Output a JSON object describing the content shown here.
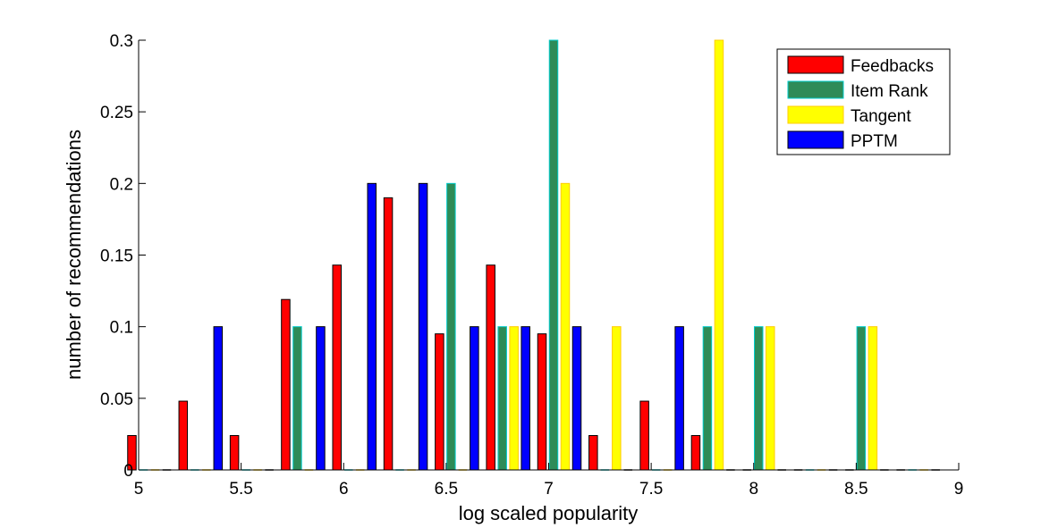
{
  "chart_data": {
    "type": "bar",
    "title": "",
    "xlabel": "log scaled popularity",
    "ylabel": "number of recommendations",
    "xlim": [
      5,
      9
    ],
    "ylim": [
      0,
      0.3
    ],
    "xticks": [
      "5",
      "5.5",
      "6",
      "6.5",
      "7",
      "7.5",
      "8",
      "8.5",
      "9"
    ],
    "yticks": [
      "0",
      "0.05",
      "0.1",
      "0.15",
      "0.2",
      "0.25",
      "0.3"
    ],
    "grid": false,
    "legend_position": "top-right",
    "bins": [
      5.0,
      5.25,
      5.5,
      5.75,
      6.0,
      6.25,
      6.5,
      6.75,
      7.0,
      7.25,
      7.5,
      7.75,
      8.0,
      8.25,
      8.5,
      8.75
    ],
    "series": [
      {
        "name": "Feedbacks",
        "color": "#ff0000",
        "edge": "#000000",
        "values": [
          0.024,
          0.048,
          0.024,
          0.119,
          0.143,
          0.19,
          0.095,
          0.143,
          0.095,
          0.024,
          0.048,
          0.024,
          0,
          0,
          0,
          0
        ]
      },
      {
        "name": "Item Rank",
        "color": "#2e8b57",
        "edge": "#00cccc",
        "values": [
          0,
          0,
          0,
          0.1,
          0,
          0,
          0.2,
          0.1,
          0.3,
          0,
          0,
          0.1,
          0.1,
          0,
          0.1,
          0
        ]
      },
      {
        "name": "Tangent",
        "color": "#ffff00",
        "edge": "#ffcc00",
        "values": [
          0,
          0,
          0,
          0,
          0,
          0,
          0,
          0.1,
          0.2,
          0.1,
          0,
          0.3,
          0.1,
          0,
          0.1,
          0
        ]
      },
      {
        "name": "PPTM",
        "color": "#0000ff",
        "edge": "#000000",
        "values": [
          0,
          0.1,
          0,
          0.1,
          0.2,
          0.2,
          0.1,
          0.1,
          0.1,
          0,
          0.1,
          0,
          0,
          0,
          0,
          0
        ]
      }
    ]
  }
}
